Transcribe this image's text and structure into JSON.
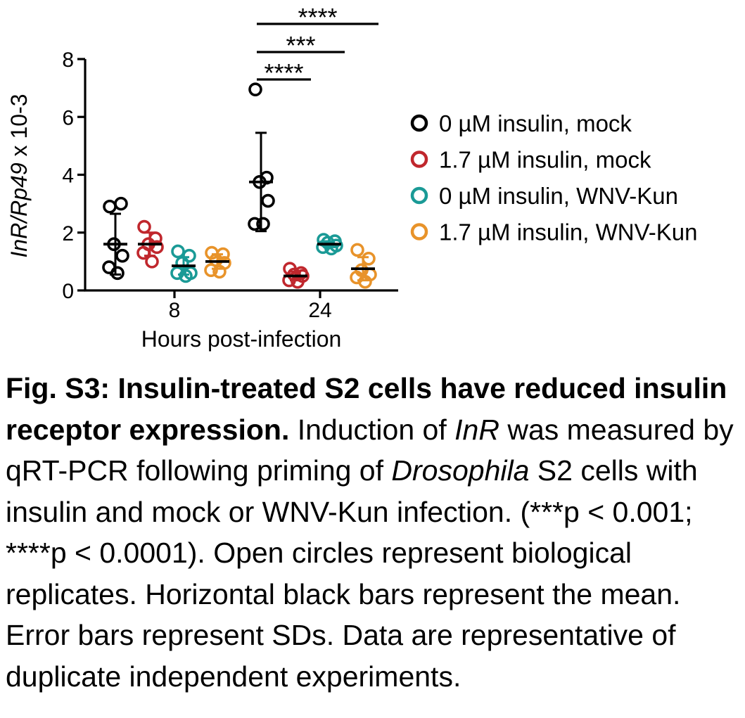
{
  "chart_data": {
    "type": "scatter",
    "ylabel_parts": [
      "InR/Rp49",
      " x 10-3"
    ],
    "xlabel": "Hours post-infection",
    "ylim": [
      0,
      8
    ],
    "yticks": [
      "0",
      "2",
      "4",
      "6",
      "8"
    ],
    "groups": [
      "8",
      "24"
    ],
    "grid": false,
    "legend_position": "right",
    "series": [
      {
        "name": "0 µM insulin, mock",
        "color": "#000000",
        "points": {
          "8": [
            2.9,
            3.0,
            1.6,
            1.2,
            0.8,
            0.6
          ],
          "24": [
            6.95,
            3.9,
            3.75,
            3.1,
            2.3,
            2.3
          ]
        },
        "mean": {
          "8": 1.6,
          "24": 3.75
        },
        "sd": {
          "8": 1.05,
          "24": 1.7
        }
      },
      {
        "name": "1.7 µM insulin, mock",
        "color": "#c0272d",
        "points": {
          "8": [
            2.2,
            1.8,
            1.6,
            1.5,
            1.3,
            1.0
          ],
          "24": [
            0.75,
            0.6,
            0.55,
            0.5,
            0.35,
            0.3
          ]
        },
        "mean": {
          "8": 1.6,
          "24": 0.5
        },
        "sd": {
          "8": 0.4,
          "24": 0.15
        }
      },
      {
        "name": "0 µM insulin, WNV-Kun",
        "color": "#1a9a96",
        "points": {
          "8": [
            1.35,
            1.2,
            0.95,
            0.6,
            0.6,
            0.5
          ],
          "24": [
            1.75,
            1.7,
            1.65,
            1.55,
            1.5,
            1.45
          ]
        },
        "mean": {
          "8": 0.85,
          "24": 1.6
        },
        "sd": {
          "8": 0.3,
          "24": 0.1
        }
      },
      {
        "name": "1.7 µM insulin, WNV-Kun",
        "color": "#e8932a",
        "points": {
          "8": [
            1.3,
            1.25,
            1.05,
            0.95,
            0.7,
            0.65
          ],
          "24": [
            1.4,
            1.1,
            0.7,
            0.55,
            0.45,
            0.3
          ]
        },
        "mean": {
          "8": 1.0,
          "24": 0.75
        },
        "sd": {
          "8": 0.25,
          "24": 0.4
        }
      }
    ],
    "annotations": [
      {
        "text": "****",
        "group": "24",
        "from_series": 0,
        "to_series": 1,
        "level": 1
      },
      {
        "text": "***",
        "group": "24",
        "from_series": 0,
        "to_series": 2,
        "level": 2
      },
      {
        "text": "****",
        "group": "24",
        "from_series": 0,
        "to_series": 3,
        "level": 3
      }
    ]
  },
  "caption": {
    "title": "Fig. S3: Insulin-treated S2 cells have reduced insulin receptor expression.",
    "t1": " Induction of ",
    "gene": "InR",
    "t2": " was measured by qRT-PCR following priming of ",
    "organism": "Drosophila",
    "t3": " S2 cells with insulin and mock or WNV-Kun infection. (***p < 0.001; ****p < 0.0001). Open circles represent biological replicates. Horizontal black bars represent the mean. Error bars represent SDs. Data are representative of duplicate independent experiments."
  }
}
